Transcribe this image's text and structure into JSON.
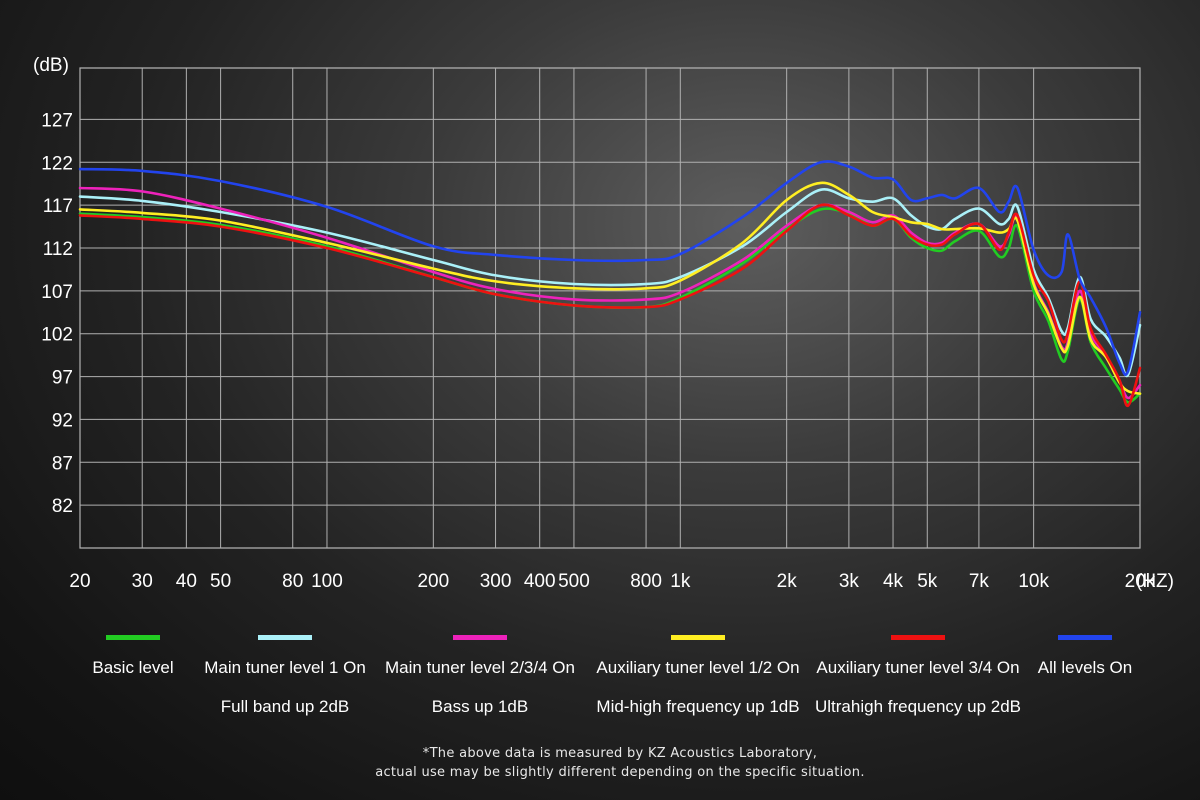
{
  "chart_data": {
    "type": "line",
    "title": "",
    "ylabel": "(dB)",
    "xlabel": "(HZ)",
    "x_scale": "log",
    "xlim": [
      20,
      20000
    ],
    "ylim": [
      77,
      133
    ],
    "y_ticks": [
      127,
      122,
      117,
      112,
      107,
      102,
      97,
      92,
      87,
      82
    ],
    "x_ticks": [
      {
        "value": 20,
        "label": "20"
      },
      {
        "value": 30,
        "label": "30"
      },
      {
        "value": 40,
        "label": "40"
      },
      {
        "value": 50,
        "label": "50"
      },
      {
        "value": 80,
        "label": "80"
      },
      {
        "value": 100,
        "label": "100"
      },
      {
        "value": 200,
        "label": "200"
      },
      {
        "value": 300,
        "label": "300"
      },
      {
        "value": 400,
        "label": "400"
      },
      {
        "value": 500,
        "label": "500"
      },
      {
        "value": 800,
        "label": "800"
      },
      {
        "value": 1000,
        "label": "1k"
      },
      {
        "value": 2000,
        "label": "2k"
      },
      {
        "value": 3000,
        "label": "3k"
      },
      {
        "value": 4000,
        "label": "4k"
      },
      {
        "value": 5000,
        "label": "5k"
      },
      {
        "value": 7000,
        "label": "7k"
      },
      {
        "value": 10000,
        "label": "10k"
      },
      {
        "value": 20000,
        "label": "20k"
      }
    ],
    "grid": true,
    "x": [
      20,
      30,
      50,
      100,
      200,
      300,
      500,
      800,
      1000,
      1500,
      2000,
      2500,
      3000,
      3500,
      4000,
      4500,
      5000,
      5500,
      6000,
      7000,
      8000,
      8500,
      9000,
      10000,
      11000,
      12000,
      12500,
      13500,
      14500,
      16000,
      17500,
      18500,
      20000
    ],
    "series": [
      {
        "name": "Basic level",
        "color": "#22cc22",
        "values": [
          116,
          115.6,
          114.7,
          112.2,
          108.6,
          106.6,
          105.3,
          105.1,
          106.2,
          110.2,
          114.2,
          116.5,
          116,
          114.6,
          115.4,
          113.2,
          112,
          111.7,
          112.8,
          114,
          111,
          112,
          114.5,
          107,
          103.5,
          99,
          100,
          106,
          101,
          98,
          95.5,
          94,
          95
        ]
      },
      {
        "name": "Main tuner level 1 On",
        "color": "#aaf0f8",
        "values": [
          118,
          117.5,
          116.2,
          113.8,
          110.6,
          108.8,
          107.8,
          107.8,
          108.6,
          112.2,
          116.2,
          118.8,
          117.8,
          117.4,
          117.8,
          115.8,
          114.5,
          114.2,
          115.4,
          116.6,
          114.8,
          115.4,
          116.8,
          109.5,
          106.2,
          102.3,
          102.7,
          108.6,
          103.7,
          101.7,
          99.2,
          97.2,
          103
        ]
      },
      {
        "name": "Main tuner level 2/3/4 On",
        "color": "#ee22bb",
        "values": [
          119,
          118.6,
          116.6,
          113.2,
          109.2,
          107.2,
          106,
          106,
          106.8,
          110.6,
          114.6,
          117,
          116.2,
          115,
          115.8,
          113.8,
          112.6,
          112.6,
          113.8,
          114.8,
          112.2,
          113.5,
          115.5,
          108,
          104.5,
          100.5,
          101,
          107,
          102,
          99.5,
          96.5,
          94.5,
          96
        ]
      },
      {
        "name": "Auxiliary tuner level 1/2 On",
        "color": "#ffee22",
        "values": [
          116.5,
          116.1,
          115.2,
          112.6,
          109.6,
          108.1,
          107.3,
          107.3,
          108.2,
          112.6,
          117.6,
          119.6,
          118.2,
          116.2,
          115.6,
          115,
          114.8,
          114.2,
          114.2,
          114.3,
          113.8,
          114.2,
          115.2,
          107.8,
          104.3,
          100.3,
          100.6,
          106.3,
          101.3,
          99.3,
          96.3,
          95.3,
          95
        ]
      },
      {
        "name": "Auxiliary tuner level 3/4 On",
        "color": "#ee1111",
        "values": [
          115.8,
          115.4,
          114.5,
          112,
          108.6,
          106.6,
          105.3,
          105.1,
          106,
          109.6,
          114,
          117,
          115.8,
          114.6,
          115.4,
          113.4,
          112.4,
          112.4,
          113.6,
          114.8,
          111.8,
          113.8,
          115.8,
          108.8,
          105.8,
          101.3,
          102.1,
          108.1,
          102.6,
          99.6,
          96.6,
          93.6,
          98
        ]
      },
      {
        "name": "All levels On",
        "color": "#2244ee",
        "values": [
          121.2,
          121,
          119.8,
          116.8,
          112.2,
          111.2,
          110.6,
          110.6,
          111.3,
          115.6,
          119.6,
          122,
          121.5,
          120.2,
          120,
          117.6,
          117.8,
          118.2,
          117.8,
          119,
          116.2,
          117.4,
          119,
          111.8,
          108.8,
          109.2,
          113.6,
          108.4,
          106.2,
          102.8,
          98.6,
          97.6,
          104.5
        ]
      }
    ]
  },
  "legend": [
    {
      "label": "Basic level",
      "sublabel": "",
      "color": "#22cc22"
    },
    {
      "label": "Main tuner level 1 On",
      "sublabel": "Full band up 2dB",
      "color": "#aaf0f8"
    },
    {
      "label": "Main tuner level 2/3/4 On",
      "sublabel": "Bass up 1dB",
      "color": "#ee22bb"
    },
    {
      "label": "Auxiliary tuner level 1/2 On",
      "sublabel": "Mid-high frequency up 1dB",
      "color": "#ffee22"
    },
    {
      "label": "Auxiliary tuner level 3/4 On",
      "sublabel": "Ultrahigh frequency up 2dB",
      "color": "#ee1111"
    },
    {
      "label": "All levels On",
      "sublabel": "",
      "color": "#2244ee"
    }
  ],
  "footnote": {
    "line1": "*The above data is measured by KZ Acoustics Laboratory,",
    "line2": "actual use may be slightly different depending on the specific situation."
  }
}
